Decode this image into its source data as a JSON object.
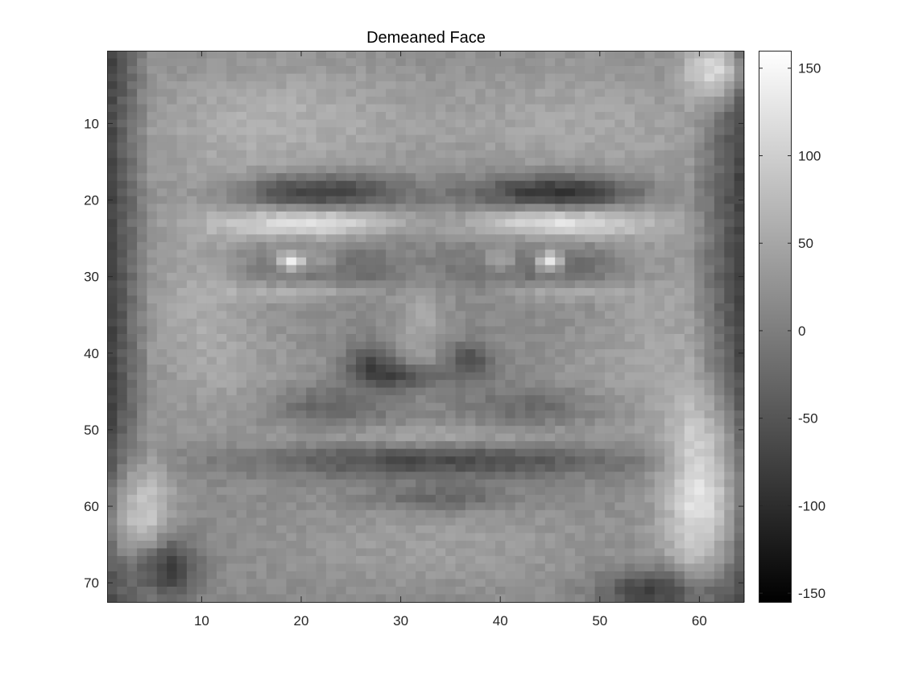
{
  "chart_data": {
    "type": "heatmap",
    "title": "Demeaned Face",
    "xlabel": "",
    "ylabel": "",
    "image": {
      "cols": 64,
      "rows": 72,
      "colormap": "gray"
    },
    "xlim": [
      0.5,
      64.5
    ],
    "ylim": [
      0.5,
      72.5
    ],
    "y_direction": "reverse",
    "x_ticks": [
      10,
      20,
      30,
      40,
      50,
      60
    ],
    "y_ticks": [
      10,
      20,
      30,
      40,
      50,
      60,
      70
    ],
    "colorbar": {
      "range": [
        -155,
        160
      ],
      "ticks": [
        150,
        100,
        50,
        0,
        -50,
        -100,
        -150
      ]
    },
    "grid": false,
    "legend": "none"
  }
}
